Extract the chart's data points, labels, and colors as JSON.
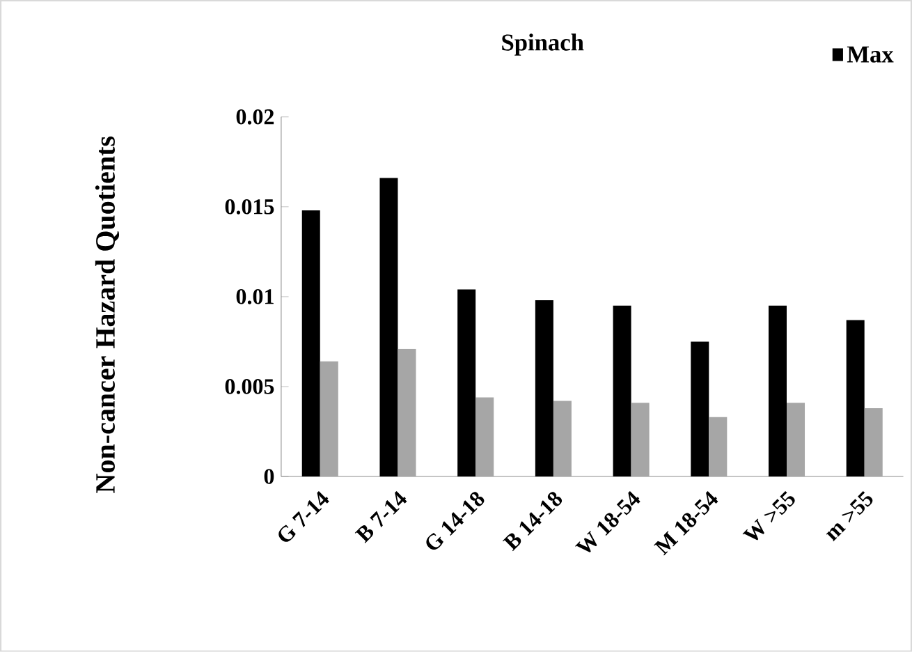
{
  "chart_data": {
    "type": "bar",
    "title": "Spinach",
    "ylabel": "Non-cancer Hazard Quotients",
    "categories": [
      "G 7-14",
      "B 7-14",
      "G 14-18",
      "B 14-18",
      "W 18-54",
      "M 18-54",
      "W >55",
      "m >55"
    ],
    "series": [
      {
        "name": "Max",
        "color": "#000000",
        "values": [
          0.0148,
          0.0166,
          0.0104,
          0.0098,
          0.0095,
          0.0075,
          0.0095,
          0.0087
        ]
      },
      {
        "color": "#a6a6a6",
        "values": [
          0.0064,
          0.0071,
          0.0044,
          0.0042,
          0.0041,
          0.0033,
          0.0041,
          0.0038
        ]
      }
    ],
    "ylim": [
      0,
      0.02
    ],
    "yticks": [
      0,
      0.005,
      0.01,
      0.015,
      0.02
    ],
    "legend": "top right"
  }
}
